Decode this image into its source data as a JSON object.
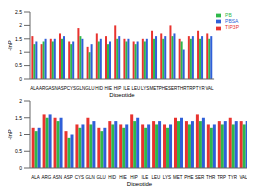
{
  "chart_data": [
    {
      "type": "bar",
      "x_label": "Dipeptide",
      "y_label": "-lnP",
      "categories": [
        "ALA",
        "ARG",
        "ASN",
        "ASP",
        "CYS",
        "GLN",
        "GLU",
        "HID",
        "HIE",
        "HIP",
        "ILE",
        "LEU",
        "LYS",
        "MET",
        "PHE",
        "SER",
        "THR",
        "TRP",
        "TYR",
        "VAL"
      ],
      "series": [
        {
          "name": "TIP3P",
          "color": "#e8332f",
          "values": [
            1.6,
            1.3,
            1.5,
            1.7,
            1.4,
            1.9,
            1.2,
            1.7,
            1.6,
            2.0,
            1.5,
            1.4,
            1.5,
            1.8,
            1.7,
            2.0,
            1.5,
            1.6,
            1.8,
            1.7
          ]
        },
        {
          "name": "PB",
          "color": "#2fb84a",
          "values": [
            1.3,
            1.4,
            1.4,
            1.5,
            1.3,
            1.6,
            1.0,
            1.4,
            1.3,
            1.5,
            1.4,
            1.3,
            1.4,
            1.5,
            1.5,
            1.6,
            1.4,
            1.5,
            1.5,
            1.5
          ]
        },
        {
          "name": "PBSA",
          "color": "#2f5fd8",
          "values": [
            1.4,
            1.5,
            1.5,
            1.6,
            1.4,
            1.5,
            1.3,
            1.5,
            1.4,
            1.6,
            1.5,
            1.4,
            1.5,
            1.6,
            1.6,
            1.7,
            1.1,
            1.6,
            1.6,
            1.6
          ]
        }
      ],
      "ylim": [
        0,
        2.5
      ],
      "yticks": [
        0,
        0.5,
        1,
        1.5,
        2,
        2.5
      ],
      "legend": "upper right"
    },
    {
      "type": "bar",
      "x_label": "Dipeptide",
      "y_label": "-lnP",
      "categories": [
        "ALA",
        "ARG",
        "ASN",
        "ASP",
        "CYS",
        "GLN",
        "GLU",
        "HID",
        "HIE",
        "HIP",
        "ILE",
        "LEU",
        "LYS",
        "MET",
        "PHE",
        "SER",
        "THR",
        "TRP",
        "TYR",
        "VAL"
      ],
      "series": [
        {
          "name": "TIP3P",
          "color": "#e8332f",
          "values": [
            1.2,
            1.6,
            1.5,
            1.1,
            1.3,
            1.5,
            1.2,
            1.4,
            1.3,
            1.6,
            1.3,
            1.4,
            1.3,
            1.5,
            1.4,
            1.6,
            1.3,
            1.4,
            1.5,
            1.4
          ]
        },
        {
          "name": "PB",
          "color": "#2fb84a",
          "values": [
            1.1,
            1.5,
            1.4,
            0.9,
            1.2,
            1.3,
            1.1,
            1.3,
            1.2,
            1.4,
            1.2,
            1.3,
            1.2,
            1.4,
            1.3,
            1.4,
            1.2,
            1.3,
            1.3,
            1.3
          ]
        },
        {
          "name": "PBSA",
          "color": "#2f5fd8",
          "values": [
            1.2,
            1.6,
            1.5,
            1.0,
            1.3,
            1.4,
            1.2,
            1.4,
            1.3,
            1.5,
            1.3,
            1.4,
            1.3,
            1.5,
            1.4,
            1.5,
            1.3,
            1.4,
            1.4,
            1.4
          ]
        }
      ],
      "ylim": [
        0,
        2
      ],
      "yticks": [
        0,
        0.5,
        1,
        1.5,
        2
      ]
    }
  ]
}
